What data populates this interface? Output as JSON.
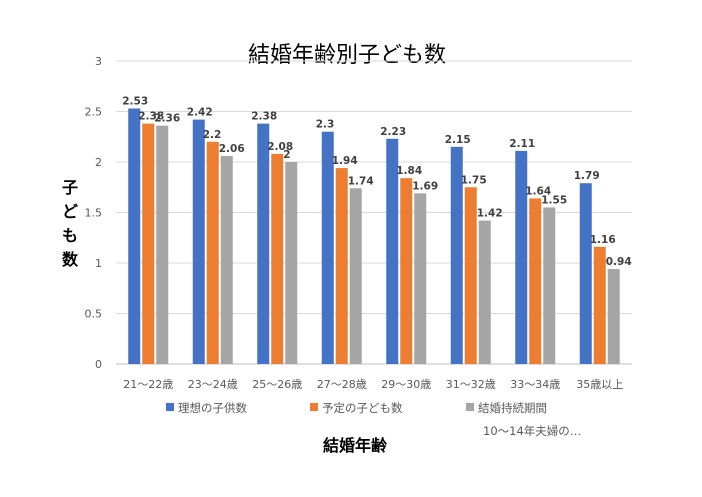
{
  "chart_data": {
    "type": "bar",
    "title": "結婚年齢別子ども数",
    "xlabel": "結婚年齢",
    "ylabel": "子ども数",
    "ylim": [
      0,
      3
    ],
    "yticks": [
      "0",
      "0.5",
      "1",
      "1.5",
      "2",
      "2.5",
      "3"
    ],
    "categories": [
      "21〜22歳",
      "23〜24歳",
      "25〜26歳",
      "27〜28歳",
      "29〜30歳",
      "31〜32歳",
      "33〜34歳",
      "35歳以上"
    ],
    "series": [
      {
        "name": "理想の子供数",
        "color": "#4472C4",
        "values": [
          2.53,
          2.42,
          2.38,
          2.3,
          2.23,
          2.15,
          2.11,
          1.79
        ],
        "labels": [
          "2.53",
          "2.42",
          "2.38",
          "2.3",
          "2.23",
          "2.15",
          "2.11",
          "1.79"
        ]
      },
      {
        "name": "予定の子ども数",
        "color": "#ED7D31",
        "values": [
          2.38,
          2.2,
          2.08,
          1.94,
          1.84,
          1.75,
          1.64,
          1.16
        ],
        "labels": [
          "2.38",
          "2.2",
          "2.08",
          "1.94",
          "1.84",
          "1.75",
          "1.64",
          "1.16"
        ]
      },
      {
        "name": "結婚持続期間",
        "color": "#A5A5A5",
        "values": [
          2.36,
          2.06,
          2.0,
          1.74,
          1.69,
          1.42,
          1.55,
          0.94
        ],
        "labels": [
          "2.36",
          "2.06",
          "2",
          "1.74",
          "1.69",
          "1.42",
          "1.55",
          "0.94"
        ]
      }
    ],
    "legend_position": "bottom",
    "legend_overflow": "10〜14年夫婦の…",
    "grid": true
  }
}
